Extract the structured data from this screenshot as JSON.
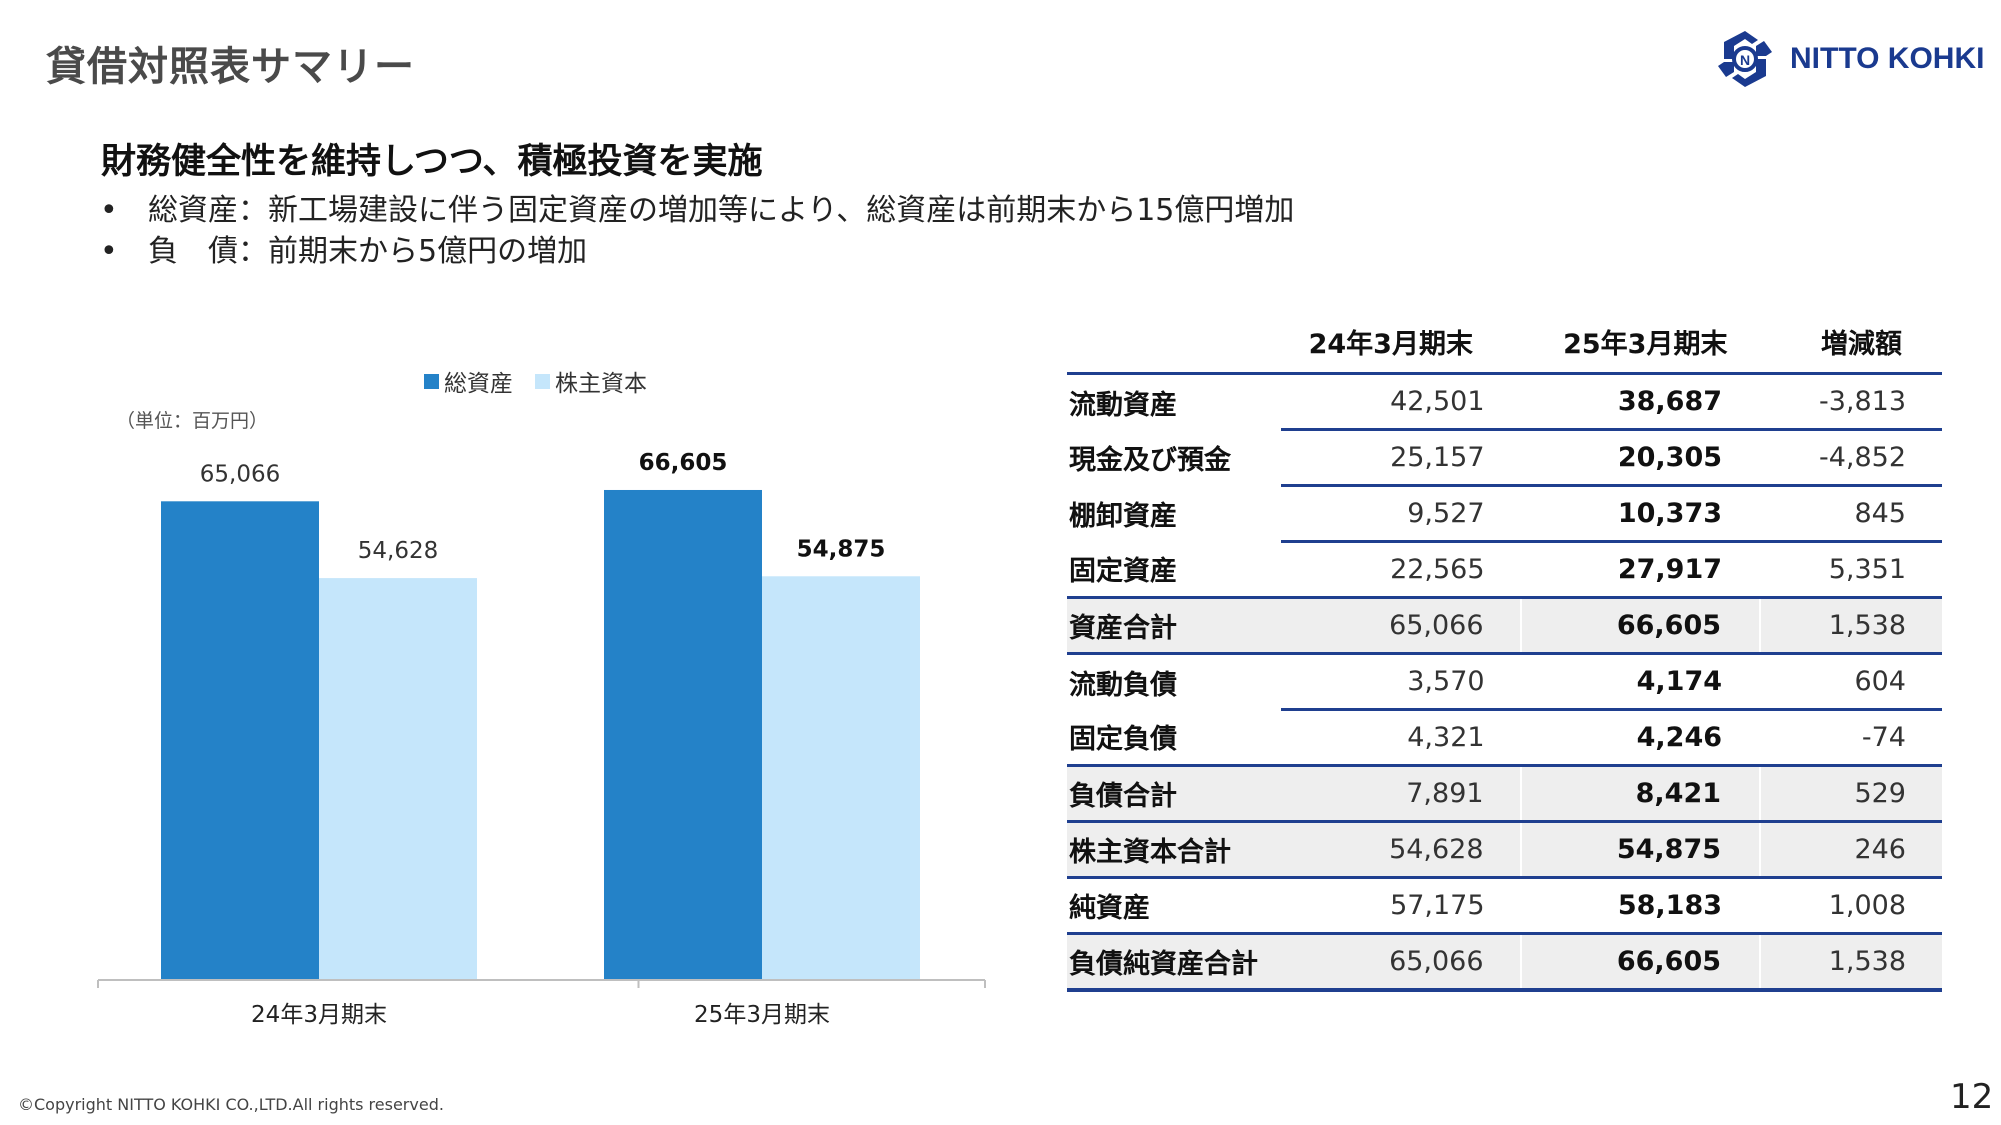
{
  "header": {
    "title": "貸借対照表サマリー",
    "logo_text": "NITTO KOHKI"
  },
  "summary": {
    "headline": "財務健全性を維持しつつ、積極投資を実施",
    "bullets": [
      "総資産：新工場建設に伴う固定資産の増加等により、総資産は前期末から15億円増加",
      "負　債：前期末から5億円の増加"
    ]
  },
  "chart_data": {
    "type": "bar",
    "title": "",
    "unit_label": "（単位：百万円）",
    "categories": [
      "24年3月期末",
      "25年3月期末"
    ],
    "series": [
      {
        "name": "総資産",
        "values": [
          65066,
          66605
        ],
        "labels": [
          "65,066",
          "66,605"
        ],
        "color": "#2482c8"
      },
      {
        "name": "株主資本",
        "values": [
          54628,
          54875
        ],
        "labels": [
          "54,628",
          "54,875"
        ],
        "color": "#c5e6fb"
      }
    ],
    "bold_category_index": 1,
    "ylim": [
      0,
      70000
    ],
    "grid": false,
    "legend_position": "top"
  },
  "table": {
    "columns": [
      "",
      "24年3月期末",
      "25年3月期末",
      "増減額"
    ],
    "rows": [
      {
        "label": "流動資産",
        "v1": "42,501",
        "v2": "38,687",
        "v3": "-3,813",
        "kind": "sub"
      },
      {
        "label": "現金及び預金",
        "v1": "25,157",
        "v2": "20,305",
        "v3": "-4,852",
        "kind": "sub"
      },
      {
        "label": "棚卸資産",
        "v1": "9,527",
        "v2": "10,373",
        "v3": "845",
        "kind": "sub"
      },
      {
        "label": "固定資産",
        "v1": "22,565",
        "v2": "27,917",
        "v3": "5,351",
        "kind": "main"
      },
      {
        "label": "資産合計",
        "v1": "65,066",
        "v2": "66,605",
        "v3": "1,538",
        "kind": "total"
      },
      {
        "label": "流動負債",
        "v1": "3,570",
        "v2": "4,174",
        "v3": "604",
        "kind": "sub"
      },
      {
        "label": "固定負債",
        "v1": "4,321",
        "v2": "4,246",
        "v3": "-74",
        "kind": "main"
      },
      {
        "label": "負債合計",
        "v1": "7,891",
        "v2": "8,421",
        "v3": "529",
        "kind": "total"
      },
      {
        "label": "株主資本合計",
        "v1": "54,628",
        "v2": "54,875",
        "v3": "246",
        "kind": "total"
      },
      {
        "label": "純資産",
        "v1": "57,175",
        "v2": "58,183",
        "v3": "1,008",
        "kind": "main"
      },
      {
        "label": "負債純資産合計",
        "v1": "65,066",
        "v2": "66,605",
        "v3": "1,538",
        "kind": "total"
      }
    ]
  },
  "footer": {
    "copyright": "©Copyright NITTO KOHKI CO.,LTD.All rights reserved.",
    "page": "12"
  },
  "colors": {
    "accent": "#1f3f8f",
    "bar_total_assets": "#2482c8",
    "bar_equity": "#c5e6fb",
    "title_gray": "#4a4a4a",
    "total_row_bg": "#eeeeee"
  },
  "icons": {
    "logo": "nitto-kohki-logo-icon"
  }
}
